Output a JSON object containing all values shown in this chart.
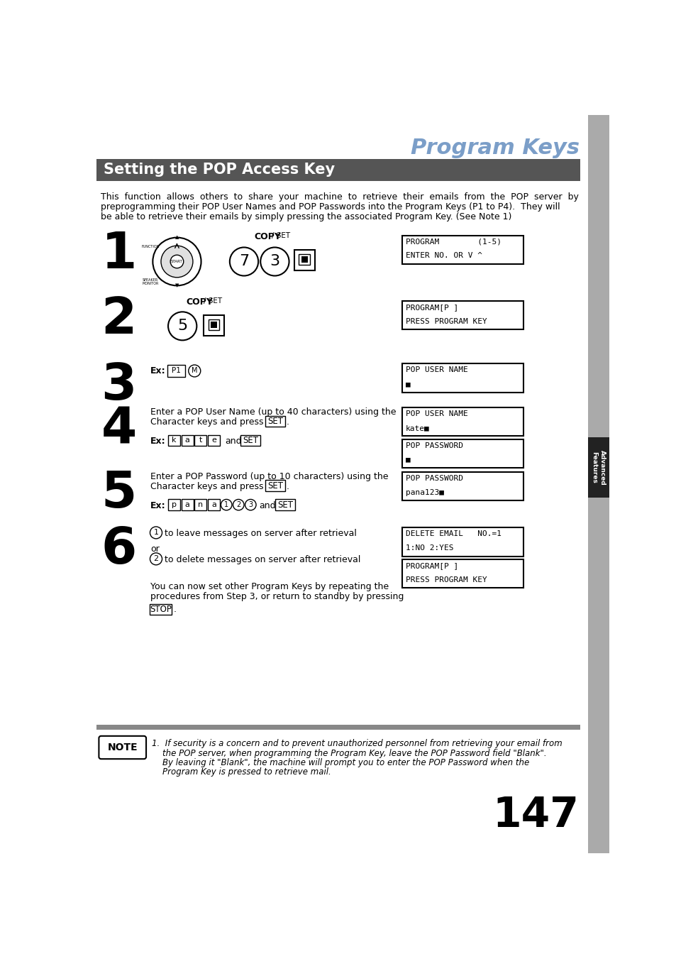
{
  "title": "Program Keys",
  "section_title": "Setting the POP Access Key",
  "section_bg": "#555555",
  "section_text_color": "#ffffff",
  "page_bg": "#ffffff",
  "title_color": "#7b9ec8",
  "sidebar_color": "#888888",
  "page_number": "147",
  "step1_screen": [
    "PROGRAM        (1-5)",
    "ENTER NO. OR V ^"
  ],
  "step2_screen": [
    "PROGRAM[P ]",
    "PRESS PROGRAM KEY"
  ],
  "step3_screen": [
    "POP USER NAME",
    "■"
  ],
  "step4a_screen": [
    "POP USER NAME",
    "kate■"
  ],
  "step4b_screen": [
    "POP PASSWORD",
    "■"
  ],
  "step5a_screen": [
    "POP PASSWORD",
    "pana123■"
  ],
  "step6a_screen": [
    "DELETE EMAIL   NO.=1",
    "1:NO 2:YES"
  ],
  "step6b_screen": [
    "PROGRAM[P ]",
    "PRESS PROGRAM KEY"
  ]
}
